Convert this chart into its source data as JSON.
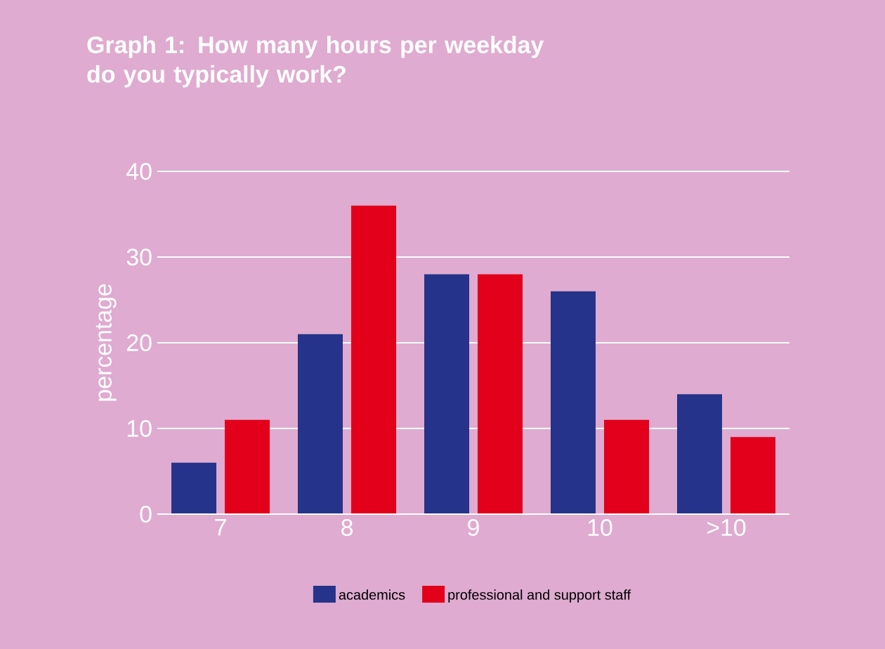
{
  "chart_data": {
    "type": "bar",
    "title": "Graph 1: How many hours per weekday do you typically work?",
    "ylabel": "percentage",
    "categories": [
      "7",
      "8",
      "9",
      "10",
      ">10"
    ],
    "series": [
      {
        "name": "academics",
        "color": "#25338a",
        "values": [
          6,
          21,
          28,
          26,
          14
        ]
      },
      {
        "name": "professional and support staff",
        "color": "#e2001a",
        "values": [
          11,
          36,
          28,
          11,
          9
        ]
      }
    ],
    "ylim": [
      0,
      40
    ],
    "yticks": [
      0,
      10,
      20,
      30,
      40
    ],
    "grid": "y",
    "legend": "bottom"
  }
}
